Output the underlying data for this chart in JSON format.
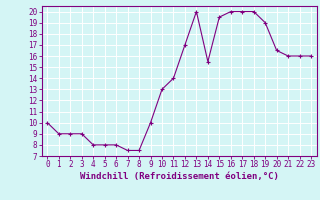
{
  "x": [
    0,
    1,
    2,
    3,
    4,
    5,
    6,
    7,
    8,
    9,
    10,
    11,
    12,
    13,
    14,
    15,
    16,
    17,
    18,
    19,
    20,
    21,
    22,
    23
  ],
  "y": [
    10,
    9,
    9,
    9,
    8,
    8,
    8,
    7.5,
    7.5,
    10,
    13,
    14,
    17,
    20,
    15.5,
    19.5,
    20,
    20,
    20,
    19,
    16.5,
    16,
    16,
    16
  ],
  "line_color": "#800080",
  "marker": "+",
  "xlabel": "Windchill (Refroidissement éolien,°C)",
  "xlim": [
    -0.5,
    23.5
  ],
  "ylim": [
    7,
    20.5
  ],
  "yticks": [
    7,
    8,
    9,
    10,
    11,
    12,
    13,
    14,
    15,
    16,
    17,
    18,
    19,
    20
  ],
  "xticks": [
    0,
    1,
    2,
    3,
    4,
    5,
    6,
    7,
    8,
    9,
    10,
    11,
    12,
    13,
    14,
    15,
    16,
    17,
    18,
    19,
    20,
    21,
    22,
    23
  ],
  "background_color": "#d4f5f5",
  "grid_color": "#ffffff",
  "tick_fontsize": 5.5,
  "xlabel_fontsize": 6.5,
  "line_width": 0.8,
  "marker_size": 3.5,
  "spine_color": "#800080"
}
